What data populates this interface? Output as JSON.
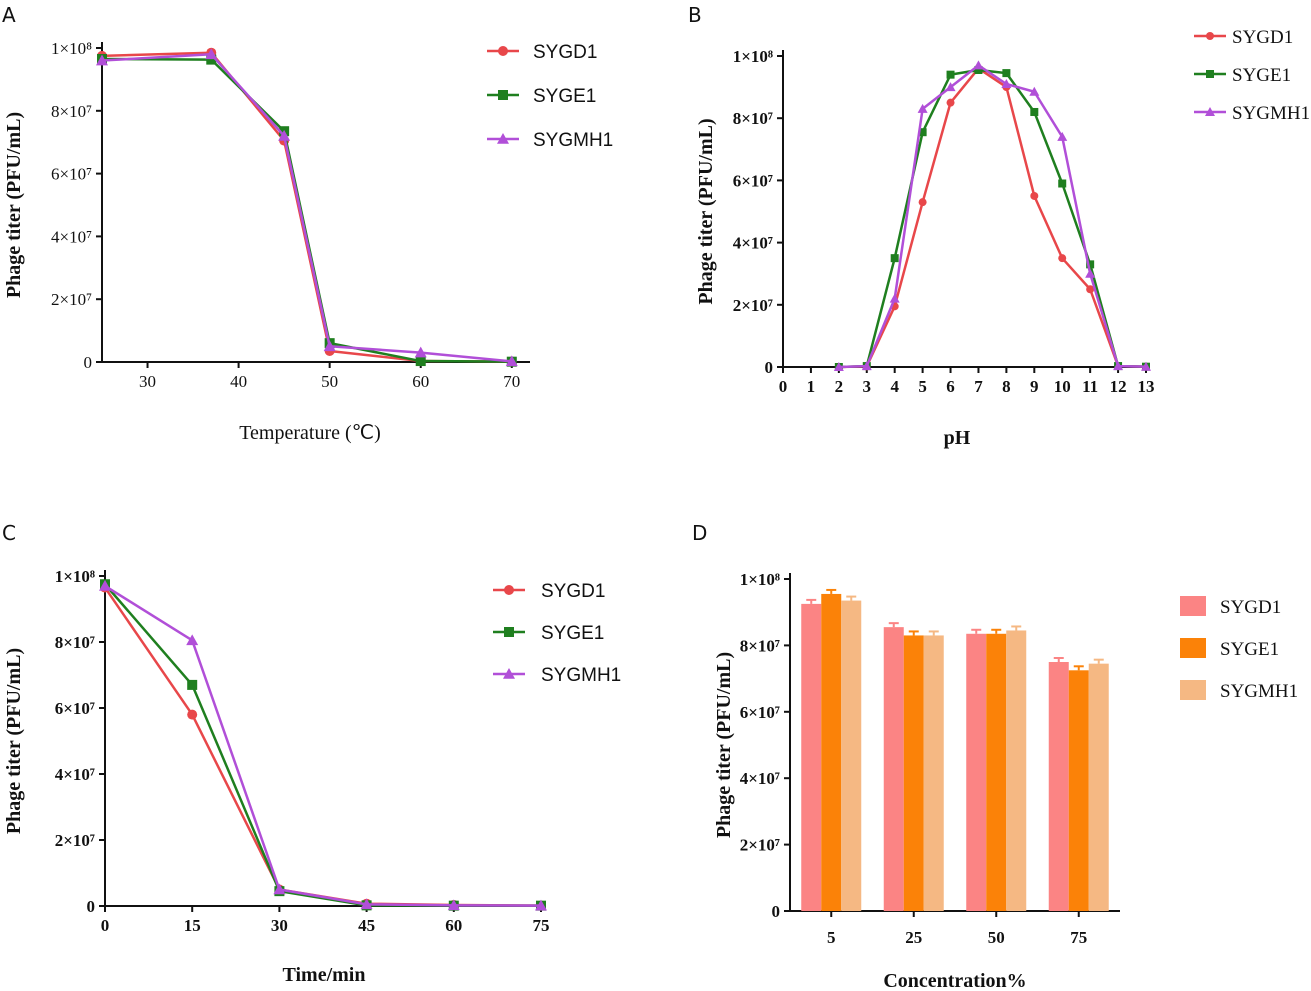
{
  "chart_data": [
    {
      "panel": "A",
      "type": "line",
      "title": "",
      "xlabel": "Temperature (℃)",
      "ylabel": "Phage titer (PFU/mL)",
      "x": [
        25,
        37,
        45,
        50,
        60,
        70
      ],
      "xlim": [
        25,
        72
      ],
      "xticks": [
        30,
        40,
        50,
        60,
        70
      ],
      "ylim": [
        0,
        100000000
      ],
      "yticks": [
        0,
        20000000,
        40000000,
        60000000,
        80000000,
        100000000
      ],
      "ytick_labels": [
        "0",
        "2×10⁷",
        "4×10⁷",
        "6×10⁷",
        "8×10⁷",
        "1×10⁸"
      ],
      "legend": "top-right",
      "series": [
        {
          "name": "SYGD1",
          "color": "#e8474a",
          "marker": "circle",
          "values": [
            97500000,
            98500000,
            70500000,
            3500000,
            300000,
            100000
          ]
        },
        {
          "name": "SYGE1",
          "color": "#1f7f1f",
          "marker": "square",
          "values": [
            96500000,
            96300000,
            73500000,
            6000000,
            300000,
            100000
          ]
        },
        {
          "name": "SYGMH1",
          "color": "#b14fd8",
          "marker": "triangle",
          "values": [
            96000000,
            98000000,
            72000000,
            5000000,
            3000000,
            200000
          ]
        }
      ]
    },
    {
      "panel": "B",
      "type": "line",
      "title": "",
      "xlabel": "pH",
      "ylabel": "Phage titer (PFU/mL)",
      "x": [
        2,
        3,
        4,
        5,
        6,
        7,
        8,
        9,
        10,
        11,
        12,
        13
      ],
      "xlim": [
        0,
        13
      ],
      "xticks": [
        0,
        1,
        2,
        3,
        4,
        5,
        6,
        7,
        8,
        9,
        10,
        11,
        12,
        13
      ],
      "ylim": [
        0,
        100000000
      ],
      "yticks": [
        0,
        20000000,
        40000000,
        60000000,
        80000000,
        100000000
      ],
      "ytick_labels": [
        "0",
        "2×10⁷",
        "4×10⁷",
        "6×10⁷",
        "8×10⁷",
        "1×10⁸"
      ],
      "legend": "top-right",
      "series": [
        {
          "name": "SYGD1",
          "color": "#e8474a",
          "marker": "circle",
          "values": [
            0,
            200000,
            19500000,
            53000000,
            85000000,
            96000000,
            90000000,
            55000000,
            35000000,
            25000000,
            300000,
            100000
          ]
        },
        {
          "name": "SYGE1",
          "color": "#1f7f1f",
          "marker": "square",
          "values": [
            0,
            300000,
            35000000,
            75500000,
            94000000,
            95500000,
            94500000,
            82000000,
            59000000,
            33000000,
            300000,
            100000
          ]
        },
        {
          "name": "SYGMH1",
          "color": "#b14fd8",
          "marker": "triangle",
          "values": [
            0,
            300000,
            22000000,
            83000000,
            90000000,
            97000000,
            91000000,
            88500000,
            74000000,
            30000000,
            300000,
            100000
          ]
        }
      ]
    },
    {
      "panel": "C",
      "type": "line",
      "title": "",
      "xlabel": "Time/min",
      "ylabel": "Phage titer (PFU/mL)",
      "x": [
        0,
        15,
        30,
        45,
        60,
        75
      ],
      "xlim": [
        0,
        75
      ],
      "xticks": [
        0,
        15,
        30,
        45,
        60,
        75
      ],
      "ylim": [
        0,
        100000000
      ],
      "yticks": [
        0,
        20000000,
        40000000,
        60000000,
        80000000,
        100000000
      ],
      "ytick_labels": [
        "0",
        "2×10⁷",
        "4×10⁷",
        "6×10⁷",
        "8×10⁷",
        "1×10⁸"
      ],
      "legend": "top-right",
      "series": [
        {
          "name": "SYGD1",
          "color": "#e8474a",
          "marker": "circle",
          "values": [
            96500000,
            58000000,
            5000000,
            700000,
            300000,
            100000
          ]
        },
        {
          "name": "SYGE1",
          "color": "#1f7f1f",
          "marker": "square",
          "values": [
            97500000,
            67000000,
            4500000,
            200000,
            100000,
            100000
          ]
        },
        {
          "name": "SYGMH1",
          "color": "#b14fd8",
          "marker": "triangle",
          "values": [
            97000000,
            80500000,
            5000000,
            500000,
            200000,
            100000
          ]
        }
      ]
    },
    {
      "panel": "D",
      "type": "bar",
      "title": "",
      "xlabel": "Concentration%",
      "ylabel": "Phage titer (PFU/mL)",
      "categories": [
        "5",
        "25",
        "50",
        "75"
      ],
      "ylim": [
        0,
        100000000
      ],
      "yticks": [
        0,
        20000000,
        40000000,
        60000000,
        80000000,
        100000000
      ],
      "ytick_labels": [
        "0",
        "2×10⁷",
        "4×10⁷",
        "6×10⁷",
        "8×10⁷",
        "1×10⁸"
      ],
      "legend": "right",
      "series": [
        {
          "name": "SYGD1",
          "color": "#fb8484",
          "values": [
            92500000,
            85500000,
            83500000,
            75000000
          ]
        },
        {
          "name": "SYGE1",
          "color": "#fb8208",
          "values": [
            95500000,
            83000000,
            83500000,
            72500000
          ]
        },
        {
          "name": "SYGMH1",
          "color": "#f5b883",
          "values": [
            93500000,
            83000000,
            84500000,
            74500000
          ]
        }
      ]
    }
  ]
}
